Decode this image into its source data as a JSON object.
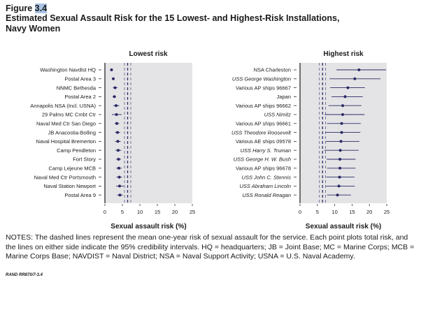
{
  "figure": {
    "label_prefix": "Figure ",
    "label_number": "3.4",
    "title_line1": "Estimated Sexual Assault Risk for the 15 Lowest- and Highest-Risk Installations,",
    "title_line2": "Navy Women"
  },
  "chart_data": [
    {
      "type": "scatter",
      "title": "Lowest risk",
      "xlabel": "Sexual assault risk (%)",
      "xlim": [
        0,
        25
      ],
      "xticks": [
        0,
        5,
        10,
        15,
        20,
        25
      ],
      "navy_mean": 6.5,
      "navy_mean_ci": [
        5.6,
        7.4
      ],
      "categories": [
        "Washington Navdist HQ",
        "Postal Area 3",
        "NNMC Bethesda",
        "Postal Area 2",
        "Annapolis NSA (Incl. USNA)",
        "29 Palms MC Cmbt Ctr",
        "Naval Med Ctr San Diego",
        "JB Anacostia-Bolling",
        "Naval Hospital Bremerton",
        "Camp Pendleton",
        "Fort Story",
        "Camp Lejeune MCB",
        "Naval Med Ctr Portsmouth",
        "Naval Station Newport",
        "Postal Area 9"
      ],
      "italic": [],
      "estimate": [
        1.9,
        2.4,
        2.9,
        2.7,
        3.2,
        3.3,
        3.4,
        3.6,
        3.7,
        3.8,
        3.9,
        4.0,
        4.1,
        4.2,
        4.3
      ],
      "ci_low": [
        1.7,
        2.1,
        2.3,
        2.2,
        2.4,
        2.0,
        2.8,
        2.9,
        2.9,
        3.0,
        3.2,
        3.2,
        3.3,
        3.2,
        3.5
      ],
      "ci_high": [
        2.1,
        2.7,
        3.6,
        3.2,
        4.1,
        4.8,
        4.1,
        4.4,
        4.5,
        4.7,
        4.6,
        4.8,
        4.9,
        5.4,
        5.1
      ]
    },
    {
      "type": "scatter",
      "title": "Highest risk",
      "xlabel": "Sexual assault risk (%)",
      "xlim": [
        0,
        25
      ],
      "xticks": [
        0,
        5,
        10,
        15,
        20,
        25
      ],
      "navy_mean": 6.5,
      "navy_mean_ci": [
        5.6,
        7.4
      ],
      "categories": [
        "NSA Charleston",
        "USS George Washington",
        "Various AP ships 96667",
        "Japan",
        "Various AP ships 96662",
        "USS Nimitz",
        "Various AP ships 96661",
        "USS Theodore Roosevelt",
        "Various AE ships 09578",
        "USS Harry S. Truman",
        "USS George H. W. Bush",
        "Various AP ships 96678",
        "USS John C. Stennis",
        "USS Abraham Lincoln",
        "USS Ronald Reagan"
      ],
      "italic": [
        false,
        true,
        false,
        false,
        false,
        true,
        false,
        true,
        false,
        true,
        true,
        false,
        true,
        true,
        true
      ],
      "estimate": [
        17.0,
        15.8,
        13.8,
        13.0,
        12.3,
        12.3,
        12.0,
        12.0,
        11.8,
        11.6,
        11.5,
        11.5,
        11.4,
        11.2,
        10.8
      ],
      "ci_low": [
        10.5,
        8.5,
        8.7,
        9.1,
        8.2,
        7.1,
        7.8,
        7.3,
        7.4,
        7.0,
        7.7,
        7.8,
        7.6,
        7.5,
        7.8
      ],
      "ci_high": [
        24.8,
        23.2,
        18.7,
        18.1,
        17.7,
        18.6,
        17.5,
        17.4,
        17.1,
        16.9,
        16.0,
        16.0,
        15.7,
        15.8,
        14.7
      ]
    }
  ],
  "notes": "NOTES: The dashed lines represent the mean one-year risk of sexual assault for the service. Each point plots total risk, and the lines on either side indicate the 95% credibility intervals. HQ = headquarters; JB = Joint Base; MC = Marine Corps; MCB = Marine Corps Base; NAVDIST = Naval District; NSA = Naval Support Activity; USNA = U.S. Naval Academy.",
  "source": "RAND RR870/7-3.4",
  "colors": {
    "point": "#2b2a66",
    "line": "#2b2a66",
    "panel_bg": "#e4e4e6"
  }
}
